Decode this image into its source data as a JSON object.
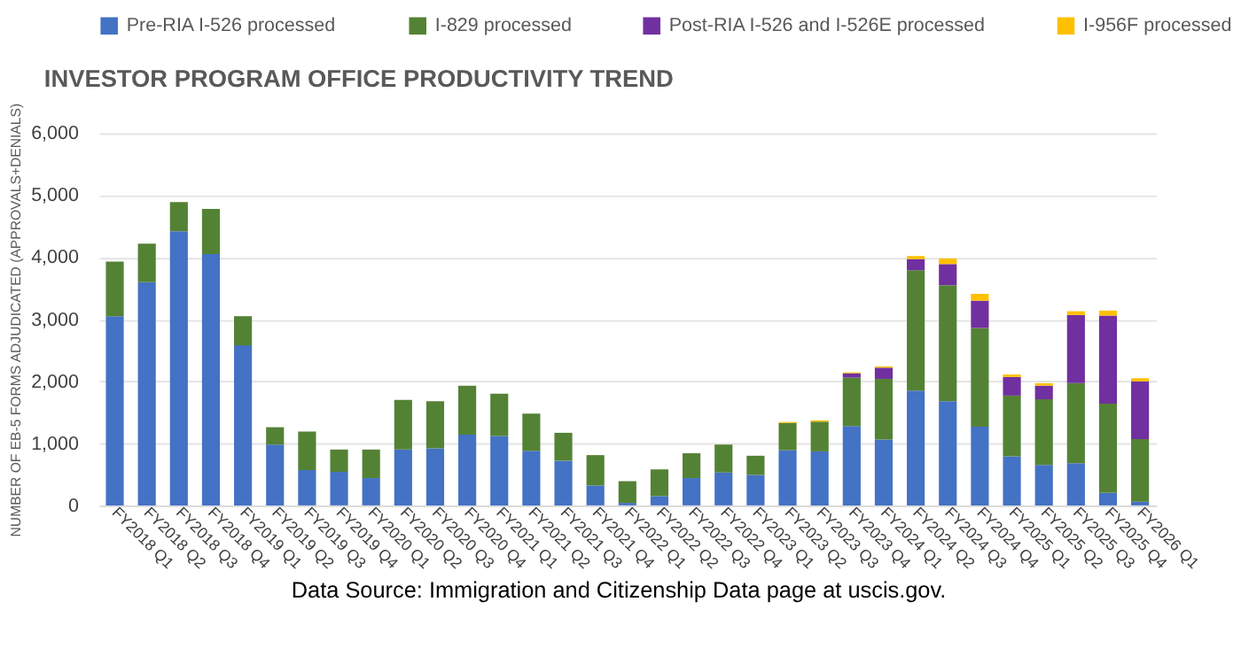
{
  "chart_data": {
    "type": "bar",
    "stacked": true,
    "title": "INVESTOR PROGRAM OFFICE PRODUCTIVITY TREND",
    "ylabel": "NUMBER OF EB-5 FORMS ADJUDICATED (APPROVALS+DENIALS)",
    "categories": [
      "FY2018 Q1",
      "FY2018 Q2",
      "FY2018 Q3",
      "FY2018 Q4",
      "FY2019 Q1",
      "FY2019 Q2",
      "FY2019 Q3",
      "FY2019 Q4",
      "FY2020 Q1",
      "FY2020 Q2",
      "FY2020 Q3",
      "FY2020 Q4",
      "FY2021 Q1",
      "FY2021 Q2",
      "FY2021 Q3",
      "FY2021 Q4",
      "FY2022 Q1",
      "FY2022 Q2",
      "FY2022 Q3",
      "FY2022 Q4",
      "FY2023 Q1",
      "FY2023 Q2",
      "FY2023 Q3",
      "FY2023 Q4",
      "FY2024 Q1",
      "FY2024 Q2",
      "FY2024 Q3",
      "FY2024 Q4",
      "FY2025 Q1",
      "FY2025 Q2",
      "FY2025 Q3",
      "FY2025 Q4",
      "FY2026 Q1"
    ],
    "series": [
      {
        "name": "Pre-RIA I-526 processed",
        "color": "#4472c4",
        "values": [
          3050,
          3600,
          4420,
          4050,
          2580,
          980,
          570,
          540,
          440,
          900,
          920,
          1140,
          1120,
          880,
          720,
          320,
          40,
          150,
          440,
          530,
          490,
          890,
          870,
          1280,
          1060,
          1850,
          1680,
          1270,
          790,
          650,
          680,
          200,
          60
        ]
      },
      {
        "name": "I-829 processed",
        "color": "#548235",
        "values": [
          880,
          620,
          470,
          730,
          470,
          280,
          620,
          360,
          460,
          800,
          760,
          790,
          680,
          600,
          450,
          490,
          350,
          430,
          400,
          450,
          310,
          440,
          480,
          780,
          980,
          1940,
          1870,
          1590,
          980,
          1060,
          1290,
          1440,
          1010
        ]
      },
      {
        "name": "Post-RIA I-526 and I-526E processed",
        "color": "#7030a0",
        "values": [
          null,
          null,
          null,
          null,
          null,
          null,
          null,
          null,
          null,
          null,
          null,
          null,
          null,
          null,
          null,
          null,
          null,
          null,
          null,
          null,
          null,
          null,
          null,
          70,
          180,
          180,
          340,
          440,
          300,
          220,
          1100,
          1420,
          930
        ]
      },
      {
        "name": "I-956F processed",
        "color": "#ffc000",
        "values": [
          null,
          null,
          null,
          null,
          null,
          null,
          null,
          null,
          null,
          null,
          null,
          null,
          null,
          null,
          null,
          null,
          null,
          null,
          null,
          null,
          null,
          15,
          20,
          15,
          20,
          50,
          90,
          110,
          40,
          40,
          60,
          80,
          50
        ]
      }
    ],
    "ylim": [
      0,
      6000
    ],
    "yticks": [
      {
        "value": 0,
        "label": "0"
      },
      {
        "value": 1000,
        "label": "1,000"
      },
      {
        "value": 2000,
        "label": "2,000"
      },
      {
        "value": 3000,
        "label": "3,000"
      },
      {
        "value": 4000,
        "label": "4,000"
      },
      {
        "value": 5000,
        "label": "5,000"
      },
      {
        "value": 6000,
        "label": "6,000"
      }
    ],
    "grid": "y",
    "legend": "top",
    "annotations": [
      "Data Source: Immigration and Citizenship Data page at uscis.gov."
    ]
  }
}
